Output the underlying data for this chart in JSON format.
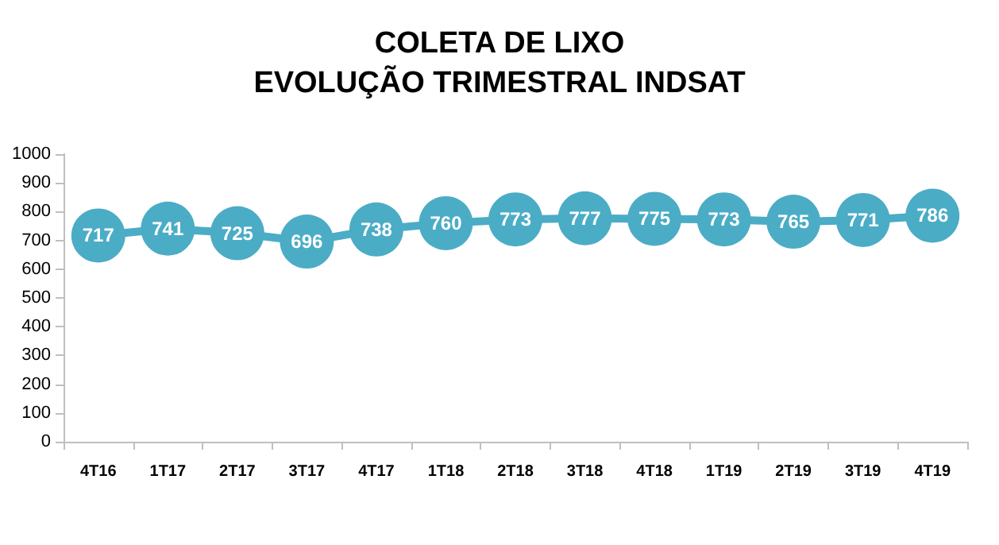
{
  "chart_data": {
    "type": "line",
    "title": "COLETA DE LIXO\nEVOLUÇÃO TRIMESTRAL INDSAT",
    "categories": [
      "4T16",
      "1T17",
      "2T17",
      "3T17",
      "4T17",
      "1T18",
      "2T18",
      "3T18",
      "4T18",
      "1T19",
      "2T19",
      "3T19",
      "4T19"
    ],
    "series": [
      {
        "color": "#4bacc6",
        "values": [
          717,
          741,
          725,
          696,
          738,
          760,
          773,
          777,
          775,
          773,
          765,
          771,
          786
        ]
      }
    ],
    "ylim": [
      0,
      1000
    ],
    "yticks": [
      0,
      100,
      200,
      300,
      400,
      500,
      600,
      700,
      800,
      900,
      1000
    ],
    "grid": false,
    "marker": "circle",
    "line_style": "solid",
    "data_labels": true
  }
}
